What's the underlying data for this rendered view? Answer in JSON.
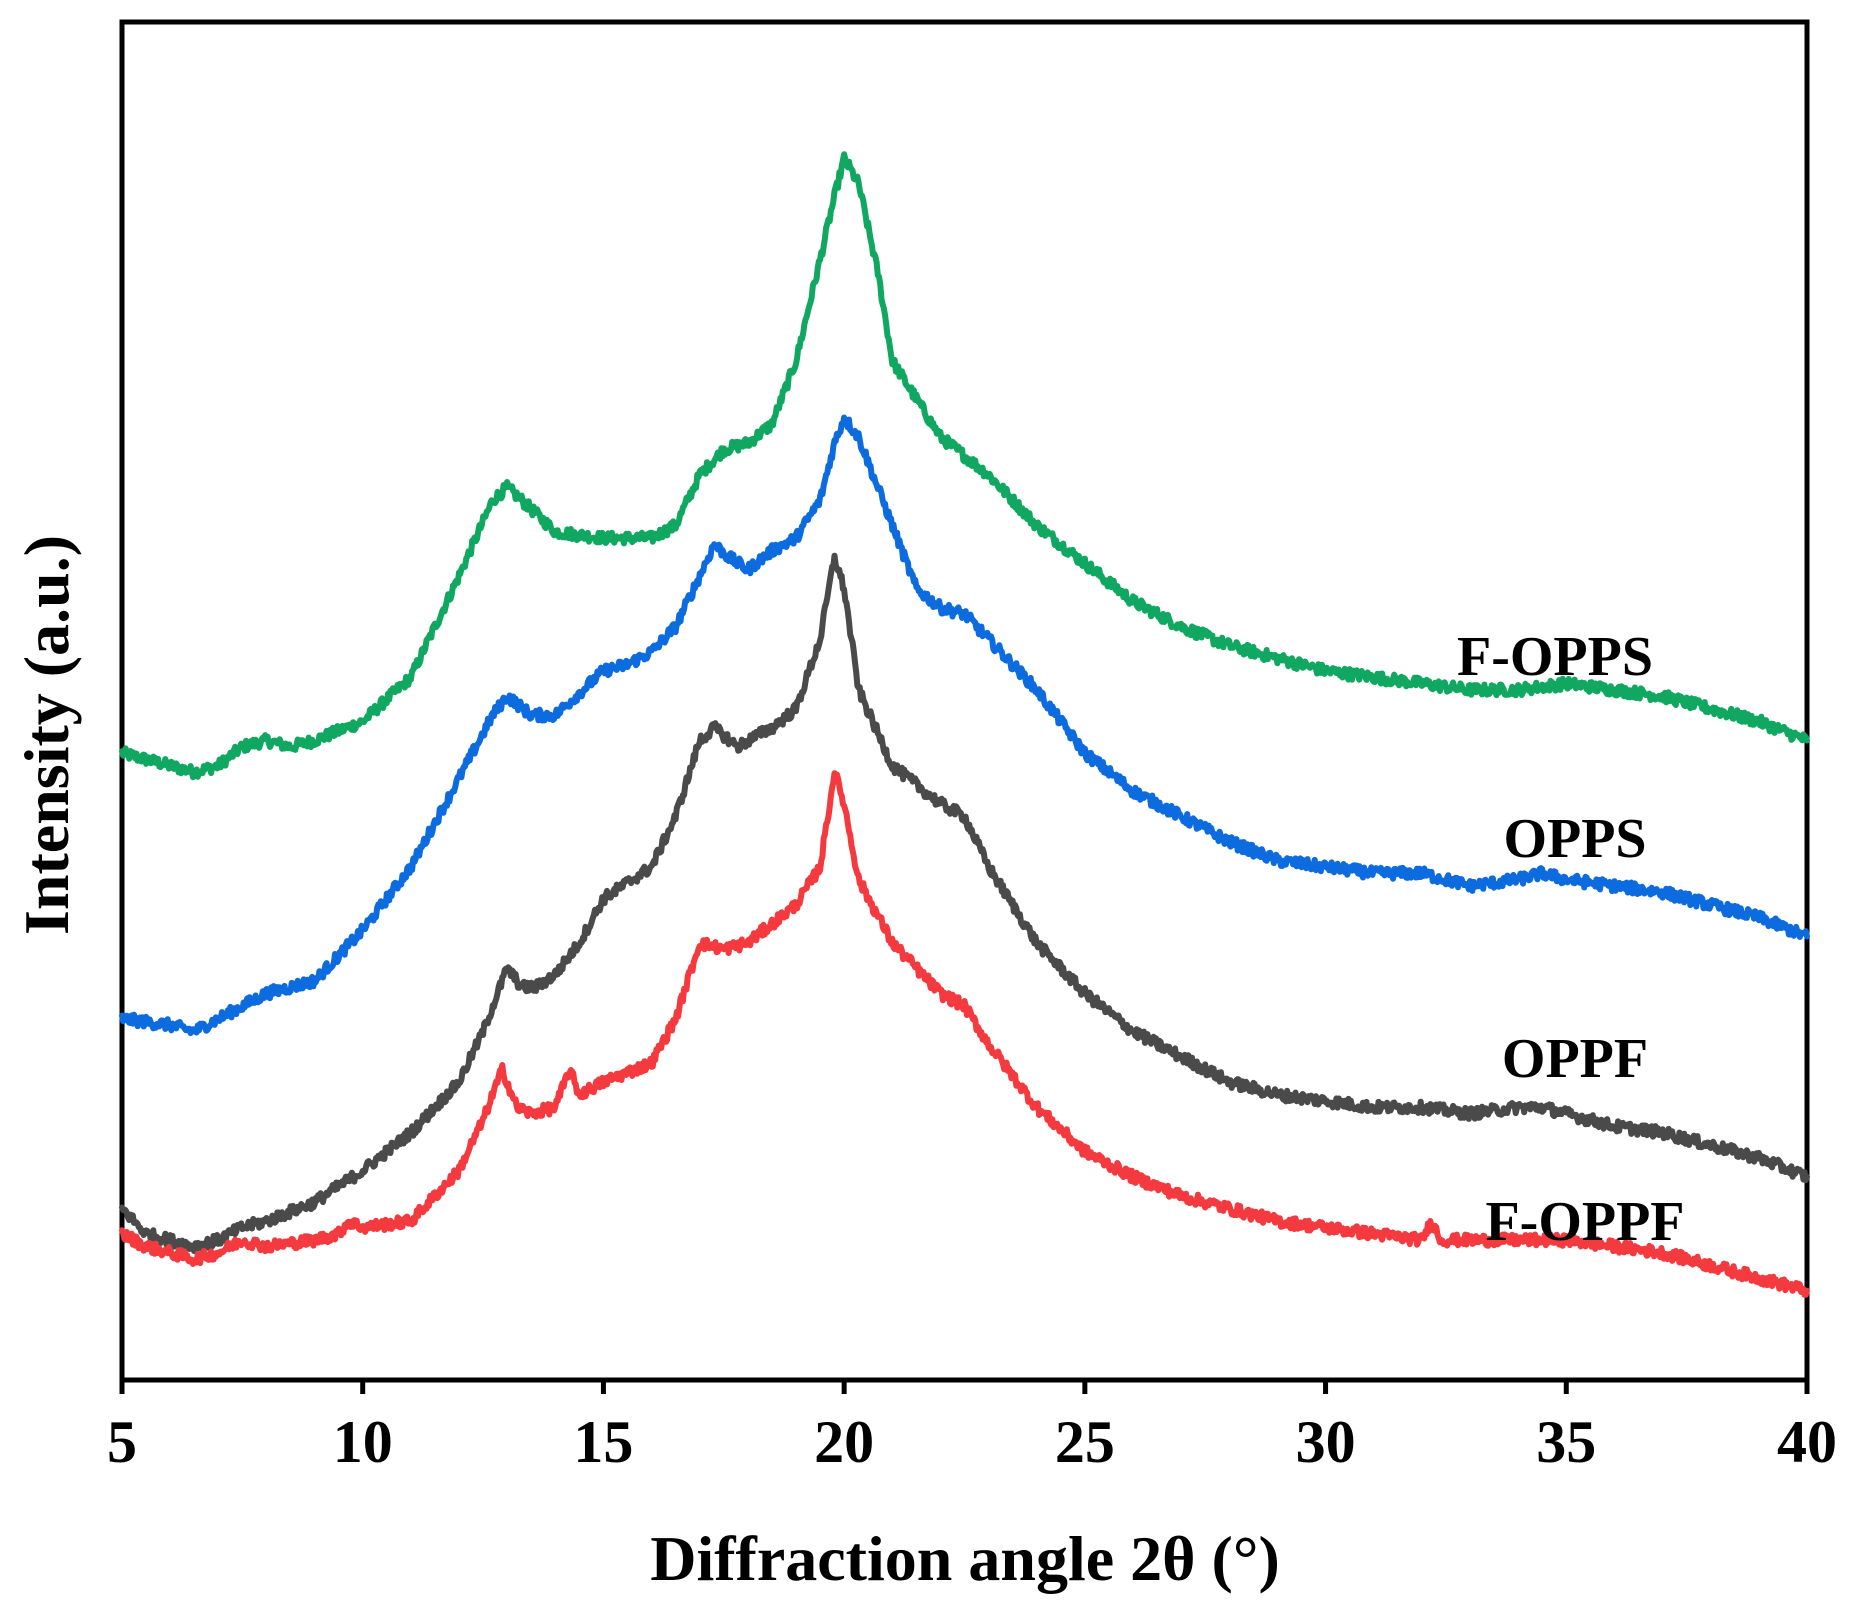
{
  "chart_data": {
    "type": "line",
    "title": "",
    "xlabel": "Diffraction angle 2θ (°)",
    "ylabel": "Intensity (a.u.)",
    "xlim": [
      5,
      40
    ],
    "ylim": [
      0,
      100
    ],
    "xticks": [
      5,
      10,
      15,
      20,
      25,
      30,
      35,
      40
    ],
    "yticks_shown": false,
    "series": [
      {
        "name": "F-OPPS",
        "color": "#10a860",
        "points": [
          [
            5,
            46
          ],
          [
            6,
            45
          ],
          [
            6.5,
            44.5
          ],
          [
            7,
            45
          ],
          [
            7.5,
            46.5
          ],
          [
            8,
            47
          ],
          [
            8.5,
            46.5
          ],
          [
            9,
            47
          ],
          [
            10,
            48.5
          ],
          [
            11,
            52
          ],
          [
            12,
            60
          ],
          [
            12.7,
            66
          ],
          [
            13,
            67
          ],
          [
            13.3,
            66
          ],
          [
            14,
            63.5
          ],
          [
            15,
            63
          ],
          [
            16,
            63
          ],
          [
            16.5,
            64
          ],
          [
            17,
            68
          ],
          [
            17.5,
            70
          ],
          [
            18,
            70.5
          ],
          [
            18.5,
            72
          ],
          [
            19,
            77
          ],
          [
            19.5,
            85
          ],
          [
            19.8,
            90
          ],
          [
            20,
            93
          ],
          [
            20.3,
            91
          ],
          [
            20.7,
            84
          ],
          [
            21,
            77
          ],
          [
            22,
            71
          ],
          [
            23,
            68
          ],
          [
            24,
            64
          ],
          [
            25,
            61
          ],
          [
            26,
            58
          ],
          [
            27,
            56
          ],
          [
            28,
            54.5
          ],
          [
            29,
            53.5
          ],
          [
            30,
            52.5
          ],
          [
            31,
            52
          ],
          [
            32,
            51.5
          ],
          [
            33,
            51
          ],
          [
            34,
            51
          ],
          [
            35,
            51.5
          ],
          [
            36,
            51
          ],
          [
            37,
            50.5
          ],
          [
            38,
            49.5
          ],
          [
            39,
            48.5
          ],
          [
            40,
            47
          ]
        ]
      },
      {
        "name": "OPPS",
        "color": "#0d6be0",
        "points": [
          [
            5,
            25
          ],
          [
            6,
            24.5
          ],
          [
            6.5,
            24
          ],
          [
            7,
            25
          ],
          [
            7.5,
            26
          ],
          [
            8,
            27
          ],
          [
            9,
            28
          ],
          [
            10,
            32
          ],
          [
            11,
            37
          ],
          [
            12,
            44
          ],
          [
            12.7,
            49
          ],
          [
            13,
            50.5
          ],
          [
            13.5,
            49
          ],
          [
            14,
            49
          ],
          [
            15,
            52.5
          ],
          [
            15.5,
            53
          ],
          [
            16,
            54
          ],
          [
            16.5,
            56
          ],
          [
            17,
            60
          ],
          [
            17.3,
            62.5
          ],
          [
            17.6,
            61.5
          ],
          [
            18,
            60.5
          ],
          [
            18.5,
            62
          ],
          [
            19,
            63
          ],
          [
            19.5,
            66
          ],
          [
            19.8,
            70.5
          ],
          [
            20,
            72.5
          ],
          [
            20.3,
            71
          ],
          [
            21,
            64
          ],
          [
            21.5,
            59
          ],
          [
            22,
            57.5
          ],
          [
            22.5,
            57
          ],
          [
            23,
            55
          ],
          [
            24,
            51
          ],
          [
            25,
            46
          ],
          [
            26,
            43
          ],
          [
            27,
            41
          ],
          [
            28,
            39
          ],
          [
            29,
            37.5
          ],
          [
            30,
            37
          ],
          [
            31,
            36.5
          ],
          [
            32,
            36.5
          ],
          [
            33,
            35.5
          ],
          [
            34,
            36
          ],
          [
            34.5,
            36.5
          ],
          [
            35,
            36
          ],
          [
            36,
            35.5
          ],
          [
            37,
            35
          ],
          [
            38,
            34
          ],
          [
            39,
            33
          ],
          [
            40,
            31.5
          ]
        ]
      },
      {
        "name": "OPPF",
        "color": "#4a4a4a",
        "points": [
          [
            5,
            10
          ],
          [
            5.5,
            8
          ],
          [
            6,
            7.5
          ],
          [
            6.5,
            7
          ],
          [
            7,
            7.5
          ],
          [
            7.5,
            8.5
          ],
          [
            8,
            9
          ],
          [
            9,
            10.5
          ],
          [
            10,
            13
          ],
          [
            11,
            16
          ],
          [
            12,
            20
          ],
          [
            12.5,
            24
          ],
          [
            13,
            29
          ],
          [
            13.3,
            27.5
          ],
          [
            13.6,
            27.5
          ],
          [
            14,
            28.5
          ],
          [
            14.5,
            31
          ],
          [
            15,
            34.5
          ],
          [
            16,
            37
          ],
          [
            16.5,
            41
          ],
          [
            17,
            47
          ],
          [
            17.3,
            48
          ],
          [
            17.8,
            46.5
          ],
          [
            18,
            47
          ],
          [
            18.5,
            48
          ],
          [
            19,
            49.5
          ],
          [
            19.5,
            55
          ],
          [
            19.8,
            61.5
          ],
          [
            20,
            59
          ],
          [
            20.3,
            51
          ],
          [
            21,
            45
          ],
          [
            22,
            42
          ],
          [
            22.5,
            41
          ],
          [
            23,
            37
          ],
          [
            24,
            31
          ],
          [
            25,
            27
          ],
          [
            26,
            24
          ],
          [
            27,
            22
          ],
          [
            28,
            20
          ],
          [
            29,
            19
          ],
          [
            30,
            18.5
          ],
          [
            31,
            18
          ],
          [
            32,
            18
          ],
          [
            33,
            17.5
          ],
          [
            34,
            18
          ],
          [
            34.5,
            18
          ],
          [
            35,
            17.5
          ],
          [
            36,
            16.5
          ],
          [
            37,
            16
          ],
          [
            38,
            15
          ],
          [
            39,
            14
          ],
          [
            40,
            12.5
          ]
        ]
      },
      {
        "name": "F-OPPF",
        "color": "#f43a3e",
        "points": [
          [
            5,
            8
          ],
          [
            5.5,
            7
          ],
          [
            6,
            6.5
          ],
          [
            6.5,
            6
          ],
          [
            7,
            6.5
          ],
          [
            7.5,
            7.5
          ],
          [
            8,
            7
          ],
          [
            9,
            7.5
          ],
          [
            9.5,
            8
          ],
          [
            9.7,
            9
          ],
          [
            10,
            8.5
          ],
          [
            11,
            9
          ],
          [
            12,
            13
          ],
          [
            12.5,
            17
          ],
          [
            12.9,
            21
          ],
          [
            13.2,
            18
          ],
          [
            13.5,
            17.5
          ],
          [
            14,
            18
          ],
          [
            14.3,
            21
          ],
          [
            14.5,
            19
          ],
          [
            15,
            20
          ],
          [
            16,
            21.5
          ],
          [
            16.5,
            25
          ],
          [
            17,
            31
          ],
          [
            17.5,
            30.5
          ],
          [
            18,
            31
          ],
          [
            19,
            34
          ],
          [
            19.5,
            37
          ],
          [
            19.8,
            44.5
          ],
          [
            20,
            42
          ],
          [
            20.3,
            36
          ],
          [
            21,
            31
          ],
          [
            22,
            27
          ],
          [
            22.5,
            26
          ],
          [
            23,
            23
          ],
          [
            24,
            18
          ],
          [
            25,
            14.5
          ],
          [
            26,
            12.5
          ],
          [
            27,
            11
          ],
          [
            28,
            10
          ],
          [
            29,
            9
          ],
          [
            30,
            8.5
          ],
          [
            31,
            8
          ],
          [
            32,
            7.5
          ],
          [
            32.2,
            9
          ],
          [
            32.4,
            7.5
          ],
          [
            33,
            7.5
          ],
          [
            34,
            7.5
          ],
          [
            35,
            7.5
          ],
          [
            36,
            7
          ],
          [
            37,
            6.5
          ],
          [
            38,
            5.5
          ],
          [
            39,
            4.5
          ],
          [
            40,
            3.5
          ]
        ]
      }
    ],
    "labels": [
      {
        "series": "F-OPPS",
        "text": "F-OPPS"
      },
      {
        "series": "OPPS",
        "text": "OPPS"
      },
      {
        "series": "OPPF",
        "text": "OPPF"
      },
      {
        "series": "F-OPPF",
        "text": "F-OPPF"
      }
    ]
  }
}
